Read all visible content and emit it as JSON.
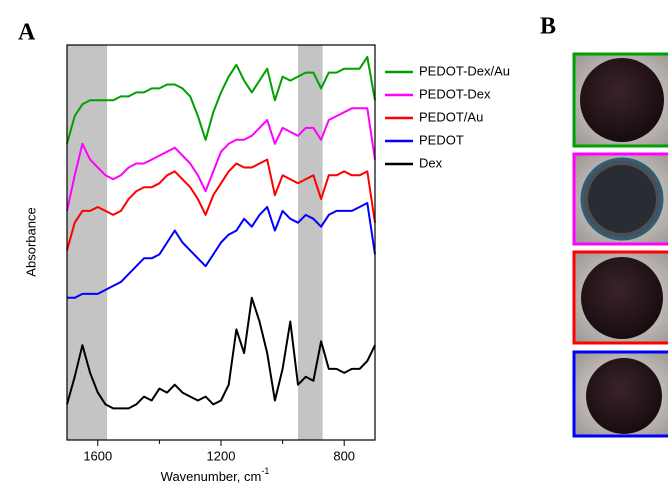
{
  "panel_labels": {
    "a": "A",
    "b": "B"
  },
  "chart_data": {
    "type": "line",
    "x_label": "Wavenumber, cm",
    "x_label_superscript": "-1",
    "y_label": "Absorbance",
    "xlim": [
      1700,
      700
    ],
    "ylim": [
      0,
      100
    ],
    "xticks": [
      1600,
      1200,
      800
    ],
    "minor_xticks": [
      1400,
      1000
    ],
    "shaded_regions": [
      [
        1700,
        1570
      ],
      [
        950,
        870
      ]
    ],
    "shade_color": "#c4c4c4",
    "x": [
      1700,
      1675,
      1650,
      1625,
      1600,
      1575,
      1550,
      1525,
      1500,
      1475,
      1450,
      1425,
      1400,
      1375,
      1350,
      1325,
      1300,
      1275,
      1250,
      1225,
      1200,
      1175,
      1150,
      1125,
      1100,
      1075,
      1050,
      1025,
      1000,
      975,
      950,
      925,
      900,
      875,
      850,
      825,
      800,
      775,
      750,
      725,
      700
    ],
    "series": [
      {
        "name": "PEDOT-Dex/Au",
        "color": "#00a000",
        "values": [
          75,
          82,
          85,
          86,
          86,
          86,
          86,
          87,
          87,
          88,
          88,
          89,
          89,
          90,
          90,
          89,
          87,
          82,
          76,
          83,
          88,
          92,
          95,
          91,
          88,
          91,
          94,
          86,
          92,
          91,
          92,
          93,
          93,
          89,
          93,
          93,
          94,
          94,
          94,
          97,
          86
        ]
      },
      {
        "name": "PEDOT-Dex",
        "color": "#ff00ff",
        "values": [
          58,
          67,
          75,
          71,
          69,
          67,
          66,
          67,
          69,
          70,
          70,
          71,
          72,
          73,
          74,
          72,
          70,
          67,
          63,
          68,
          73,
          75,
          76,
          76,
          77,
          79,
          81,
          75,
          79,
          78,
          77,
          79,
          79,
          76,
          81,
          82,
          83,
          84,
          84,
          84,
          71
        ]
      },
      {
        "name": "PEDOT/Au",
        "color": "#ff0000",
        "values": [
          48,
          55,
          58,
          58,
          59,
          58,
          57,
          58,
          61,
          63,
          64,
          64,
          65,
          67,
          68,
          66,
          64,
          61,
          57,
          62,
          65,
          68,
          70,
          69,
          69,
          70,
          71,
          62,
          67,
          66,
          65,
          66,
          67,
          61,
          67,
          67,
          68,
          67,
          67,
          68,
          55
        ]
      },
      {
        "name": "PEDOT",
        "color": "#0000ff",
        "values": [
          36,
          36,
          37,
          37,
          37,
          38,
          39,
          40,
          42,
          44,
          46,
          46,
          47,
          50,
          53,
          50,
          48,
          46,
          44,
          47,
          50,
          52,
          53,
          56,
          54,
          57,
          59,
          53,
          58,
          56,
          55,
          57,
          56,
          54,
          57,
          58,
          58,
          58,
          59,
          60,
          47
        ]
      },
      {
        "name": "Dex",
        "color": "#000000",
        "values": [
          9,
          16,
          24,
          17,
          12,
          9,
          8,
          8,
          8,
          9,
          11,
          10,
          13,
          12,
          14,
          12,
          11,
          10,
          11,
          9,
          10,
          14,
          28,
          22,
          36,
          30,
          22,
          10,
          18,
          30,
          14,
          16,
          15,
          25,
          18,
          18,
          17,
          18,
          18,
          20,
          24
        ]
      }
    ]
  }
}
